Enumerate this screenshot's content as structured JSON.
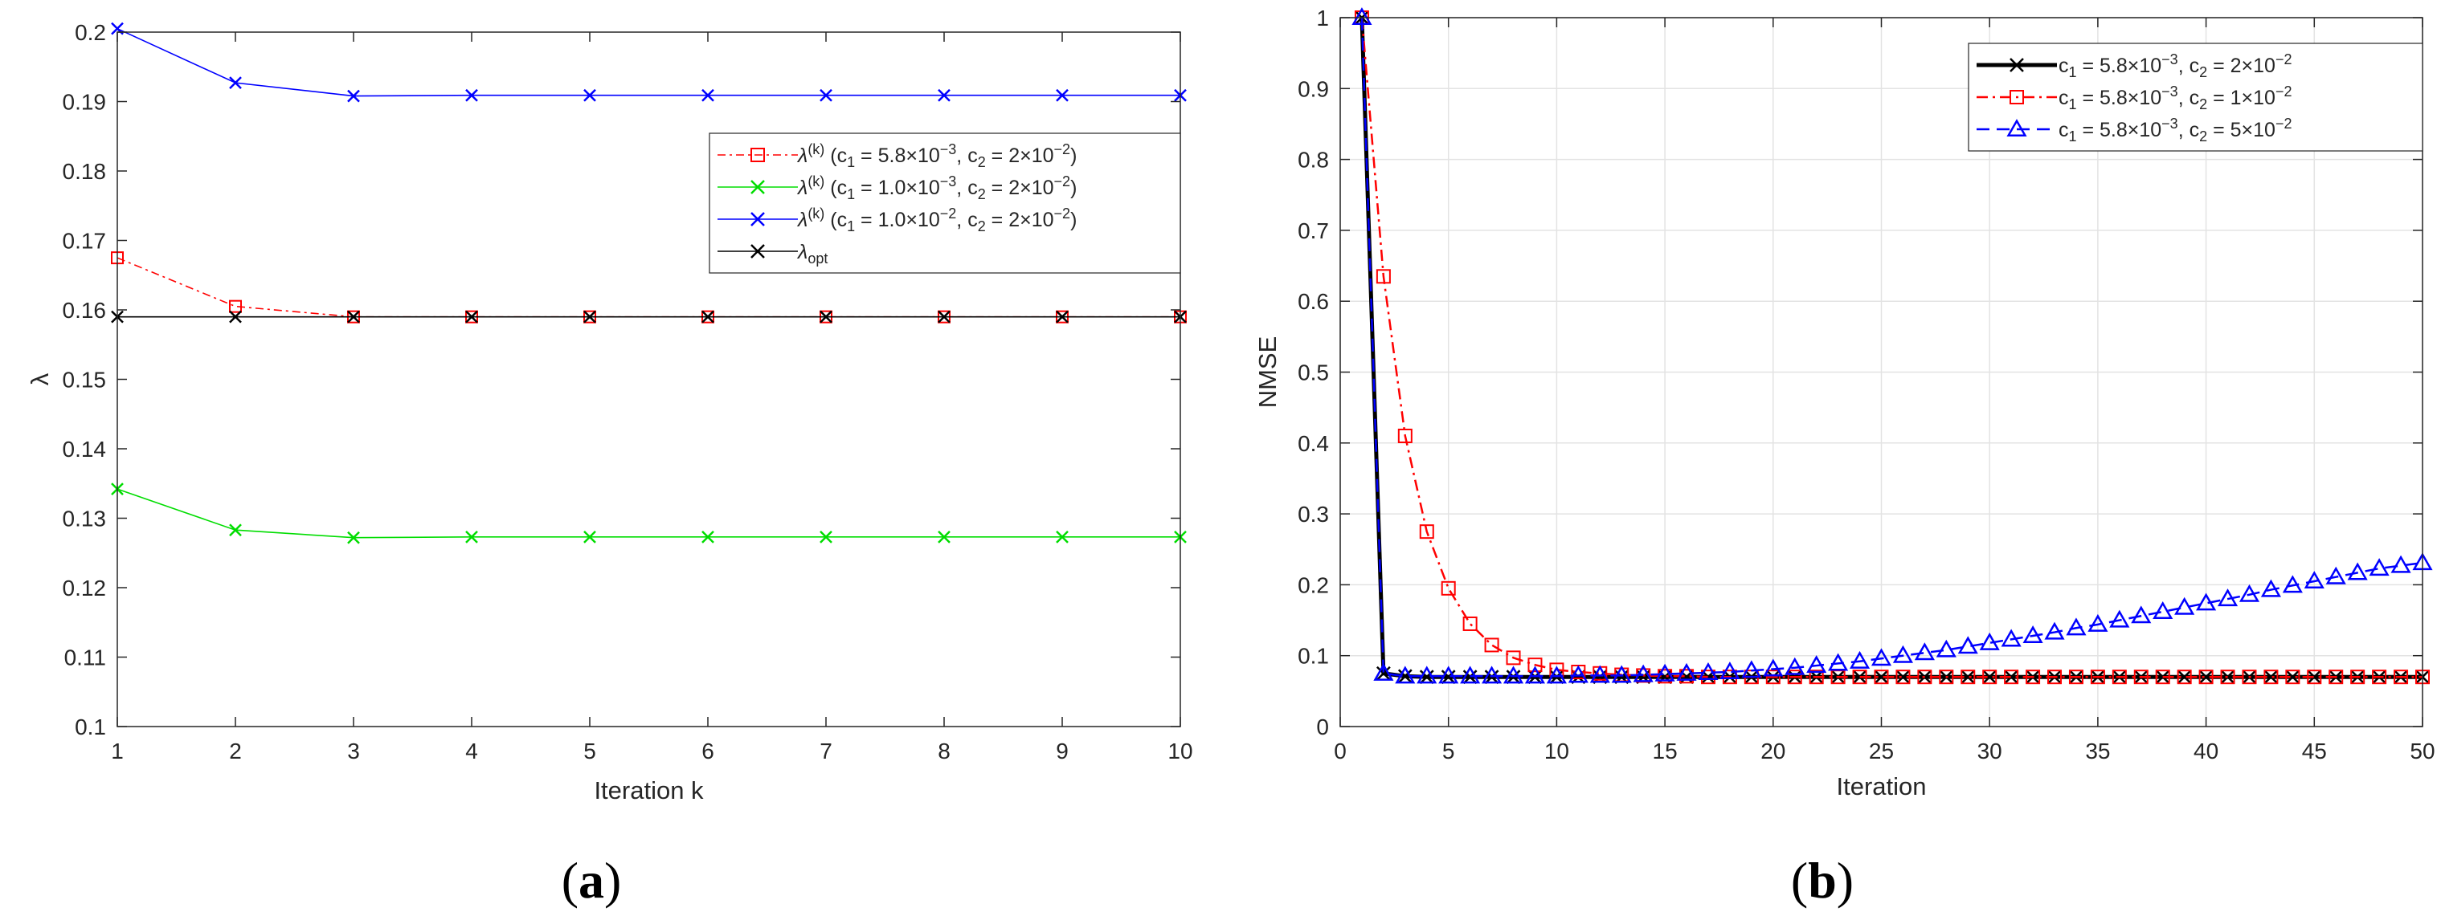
{
  "chart_data": [
    {
      "panel": "a",
      "type": "line",
      "caption_letter": "a",
      "xlabel": "Iteration k",
      "ylabel": "λ",
      "xlim": [
        1,
        10
      ],
      "ylim": [
        0.1,
        0.2
      ],
      "xticks": [
        1,
        2,
        3,
        4,
        5,
        6,
        7,
        8,
        9,
        10
      ],
      "yticks": [
        0.1,
        0.11,
        0.12,
        0.13,
        0.14,
        0.15,
        0.16,
        0.17,
        0.18,
        0.19,
        0.2
      ],
      "grid": false,
      "legend_position": "upper-right",
      "x": [
        1,
        2,
        3,
        4,
        5,
        6,
        7,
        8,
        9,
        10
      ],
      "series": [
        {
          "color": "#ff0000",
          "dash": "10,5,3,5",
          "marker": "square",
          "legend": {
            "sym": "λ",
            "sup": "(k)",
            "c1": "5.8×10",
            "c1exp": "−3",
            "c2": "2×10",
            "c2exp": "−2"
          },
          "values": [
            0.1675,
            0.1605,
            0.159,
            0.159,
            0.159,
            0.159,
            0.159,
            0.159,
            0.159,
            0.159
          ]
        },
        {
          "color": "#00dd00",
          "dash": "",
          "marker": "x",
          "legend": {
            "sym": "λ",
            "sup": "(k)",
            "c1": "1.0×10",
            "c1exp": "−3",
            "c2": "2×10",
            "c2exp": "−2"
          },
          "values": [
            0.1342,
            0.1283,
            0.1272,
            0.1273,
            0.1273,
            0.1273,
            0.1273,
            0.1273,
            0.1273,
            0.1273
          ]
        },
        {
          "color": "#0000ff",
          "dash": "",
          "marker": "x",
          "legend": {
            "sym": "λ",
            "sup": "(k)",
            "c1": "1.0×10",
            "c1exp": "−2",
            "c2": "2×10",
            "c2exp": "−2"
          },
          "values": [
            0.2005,
            0.1927,
            0.1908,
            0.1909,
            0.1909,
            0.1909,
            0.1909,
            0.1909,
            0.1909,
            0.1909
          ]
        },
        {
          "color": "#000000",
          "dash": "",
          "marker": "x",
          "legend": {
            "sym": "λ",
            "sub": "opt"
          },
          "values": [
            0.159,
            0.159,
            0.159,
            0.159,
            0.159,
            0.159,
            0.159,
            0.159,
            0.159,
            0.159
          ]
        }
      ]
    },
    {
      "panel": "b",
      "type": "line",
      "caption_letter": "b",
      "xlabel": "Iteration",
      "ylabel": "NMSE",
      "xlim": [
        0,
        50
      ],
      "ylim": [
        0,
        1
      ],
      "xticks": [
        0,
        5,
        10,
        15,
        20,
        25,
        30,
        35,
        40,
        45,
        50
      ],
      "yticks": [
        0,
        0.1,
        0.2,
        0.3,
        0.4,
        0.5,
        0.6,
        0.7,
        0.8,
        0.9,
        1
      ],
      "grid": true,
      "legend_position": "upper-right",
      "x": [
        1,
        2,
        3,
        4,
        5,
        6,
        7,
        8,
        9,
        10,
        11,
        12,
        13,
        14,
        15,
        16,
        17,
        18,
        19,
        20,
        21,
        22,
        23,
        24,
        25,
        26,
        27,
        28,
        29,
        30,
        31,
        32,
        33,
        34,
        35,
        36,
        37,
        38,
        39,
        40,
        41,
        42,
        43,
        44,
        45,
        46,
        47,
        48,
        49,
        50
      ],
      "series": [
        {
          "color": "#000000",
          "dash": "",
          "marker": "x",
          "width": 5,
          "legend": {
            "c1": "5.8×10",
            "c1exp": "−3",
            "c2": "2×10",
            "c2exp": "−2"
          },
          "values": [
            1.0,
            0.075,
            0.071,
            0.07,
            0.07,
            0.07,
            0.07,
            0.07,
            0.07,
            0.07,
            0.07,
            0.07,
            0.07,
            0.07,
            0.07,
            0.07,
            0.07,
            0.07,
            0.07,
            0.07,
            0.07,
            0.07,
            0.07,
            0.07,
            0.07,
            0.07,
            0.07,
            0.07,
            0.07,
            0.07,
            0.07,
            0.07,
            0.07,
            0.07,
            0.07,
            0.07,
            0.07,
            0.07,
            0.07,
            0.07,
            0.07,
            0.07,
            0.07,
            0.07,
            0.07,
            0.07,
            0.07,
            0.07,
            0.07,
            0.07
          ]
        },
        {
          "color": "#ff0000",
          "dash": "14,6,3,6",
          "marker": "square",
          "width": 2.5,
          "legend": {
            "c1": "5.8×10",
            "c1exp": "−3",
            "c2": "1×10",
            "c2exp": "−2"
          },
          "values": [
            1.0,
            0.635,
            0.41,
            0.275,
            0.195,
            0.145,
            0.115,
            0.097,
            0.087,
            0.08,
            0.077,
            0.075,
            0.073,
            0.072,
            0.071,
            0.071,
            0.07,
            0.07,
            0.07,
            0.07,
            0.07,
            0.07,
            0.07,
            0.07,
            0.07,
            0.07,
            0.07,
            0.07,
            0.07,
            0.07,
            0.07,
            0.07,
            0.07,
            0.07,
            0.07,
            0.07,
            0.07,
            0.07,
            0.07,
            0.07,
            0.07,
            0.07,
            0.07,
            0.07,
            0.07,
            0.07,
            0.07,
            0.07,
            0.07,
            0.07
          ]
        },
        {
          "color": "#0000ff",
          "dash": "16,9",
          "marker": "triangle",
          "width": 2.5,
          "legend": {
            "c1": "5.8×10",
            "c1exp": "−3",
            "c2": "5×10",
            "c2exp": "−2"
          },
          "values": [
            1.0,
            0.075,
            0.071,
            0.071,
            0.071,
            0.071,
            0.071,
            0.071,
            0.071,
            0.071,
            0.072,
            0.072,
            0.072,
            0.073,
            0.074,
            0.075,
            0.076,
            0.077,
            0.079,
            0.081,
            0.083,
            0.086,
            0.089,
            0.092,
            0.096,
            0.1,
            0.104,
            0.108,
            0.113,
            0.118,
            0.123,
            0.128,
            0.133,
            0.139,
            0.144,
            0.15,
            0.156,
            0.162,
            0.168,
            0.174,
            0.18,
            0.186,
            0.193,
            0.199,
            0.205,
            0.211,
            0.217,
            0.223,
            0.227,
            0.231
          ]
        }
      ]
    }
  ]
}
